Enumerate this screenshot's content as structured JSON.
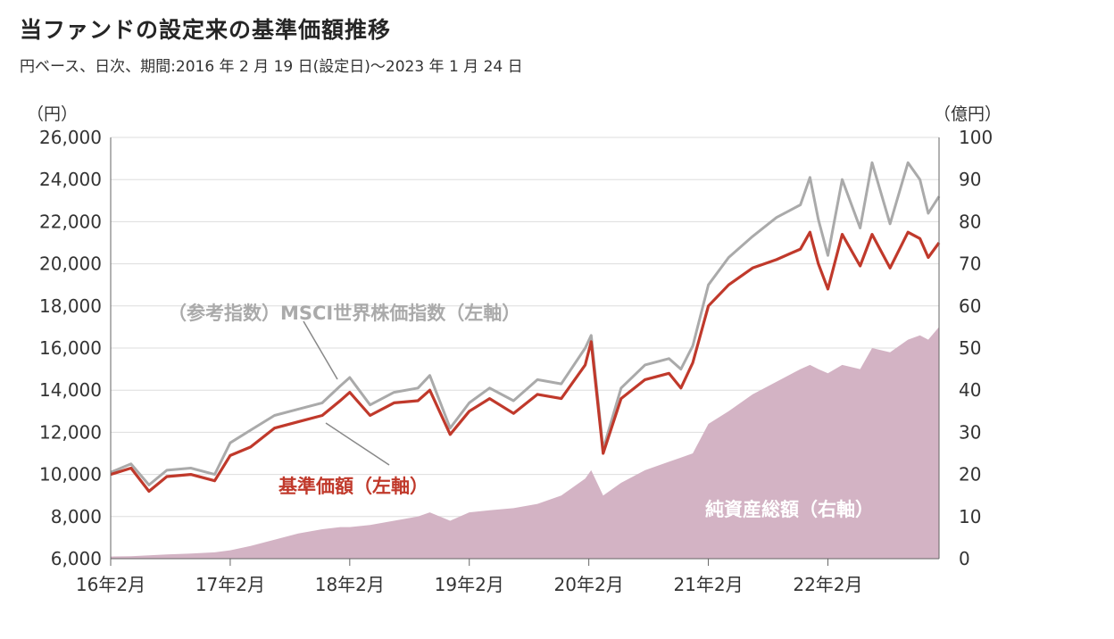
{
  "title": "当ファンドの設定来の基準価額推移",
  "subtitle": "円ベース、日次、期間:2016 年 2 月 19 日(設定日)～2023 年 1 月 24 日",
  "colors": {
    "nav": "#c0392b",
    "msci": "#aaaaaa",
    "assets": "#d3b3c4",
    "grid": "#dddddd"
  },
  "chart_data": {
    "type": "line",
    "left_axis": {
      "unit": "（円）",
      "ylim": [
        6000,
        26000
      ],
      "ticks": [
        "26,000",
        "24,000",
        "22,000",
        "20,000",
        "18,000",
        "16,000",
        "14,000",
        "12,000",
        "10,000",
        "8,000",
        "6,000"
      ]
    },
    "right_axis": {
      "unit": "（億円）",
      "ylim": [
        0,
        100
      ],
      "ticks": [
        "100",
        "90",
        "80",
        "70",
        "60",
        "50",
        "40",
        "30",
        "20",
        "10",
        "0"
      ]
    },
    "x_tick_labels": [
      "16年2月",
      "17年2月",
      "18年2月",
      "19年2月",
      "20年2月",
      "21年2月",
      "22年2月"
    ],
    "x": [
      2016.13,
      2016.3,
      2016.45,
      2016.6,
      2016.8,
      2017.0,
      2017.13,
      2017.3,
      2017.5,
      2017.7,
      2017.9,
      2018.05,
      2018.13,
      2018.3,
      2018.5,
      2018.7,
      2018.8,
      2018.97,
      2019.13,
      2019.3,
      2019.5,
      2019.7,
      2019.9,
      2020.1,
      2020.15,
      2020.25,
      2020.4,
      2020.6,
      2020.8,
      2020.9,
      2021.0,
      2021.13,
      2021.3,
      2021.5,
      2021.7,
      2021.9,
      2021.98,
      2022.05,
      2022.13,
      2022.25,
      2022.4,
      2022.5,
      2022.65,
      2022.8,
      2022.9,
      2022.97,
      2023.06
    ],
    "series": [
      {
        "name": "基準価額（左軸）",
        "axis": "left",
        "values": [
          10000,
          10300,
          9200,
          9900,
          10000,
          9700,
          10900,
          11300,
          12200,
          12500,
          12800,
          13500,
          13900,
          12800,
          13400,
          13500,
          14000,
          11900,
          13000,
          13600,
          12900,
          13800,
          13600,
          15200,
          16300,
          11000,
          13600,
          14500,
          14800,
          14100,
          15300,
          18000,
          19000,
          19800,
          20200,
          20700,
          21500,
          20000,
          18800,
          21400,
          19900,
          21400,
          19800,
          21500,
          21200,
          20300,
          21000
        ]
      },
      {
        "name": "（参考指数）MSCI世界株価指数（左軸）",
        "axis": "left",
        "values": [
          10100,
          10500,
          9500,
          10200,
          10300,
          10000,
          11500,
          12100,
          12800,
          13100,
          13400,
          14200,
          14600,
          13300,
          13900,
          14100,
          14700,
          12200,
          13400,
          14100,
          13500,
          14500,
          14300,
          16000,
          16600,
          11200,
          14100,
          15200,
          15500,
          15000,
          16100,
          19000,
          20300,
          21300,
          22200,
          22800,
          24100,
          22100,
          20400,
          24000,
          21700,
          24800,
          21900,
          24800,
          24000,
          22400,
          23200
        ]
      },
      {
        "name": "純資産総額（右軸）",
        "axis": "right",
        "values": [
          0.5,
          0.6,
          0.8,
          1,
          1.2,
          1.5,
          2,
          3,
          4.5,
          6,
          7,
          7.5,
          7.5,
          8,
          9,
          10,
          11,
          9,
          11,
          11.5,
          12,
          13,
          15,
          19,
          21,
          15,
          18,
          21,
          23,
          24,
          25,
          32,
          35,
          39,
          42,
          45,
          46,
          45,
          44,
          46,
          45,
          50,
          49,
          52,
          53,
          52,
          55
        ]
      }
    ],
    "annotations": [
      {
        "text": "（参考指数）MSCI世界株価指数（左軸）",
        "color": "#aaaaaa"
      },
      {
        "text": "基準価額（左軸）",
        "color": "#c0392b"
      },
      {
        "text": "純資産総額（右軸）",
        "color": "#ffffff"
      }
    ],
    "grid": true
  }
}
